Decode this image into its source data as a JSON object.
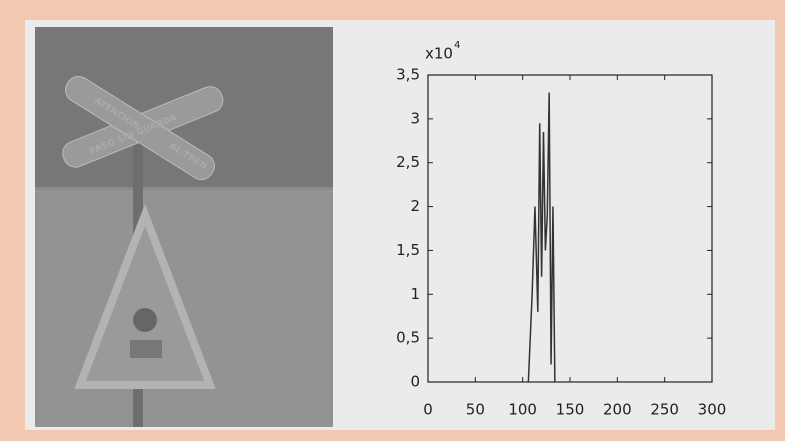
{
  "photo_text": {
    "sign_top": "ATENCION",
    "sign_middle": "PASO SIN GUARDA",
    "sign_bottom": "AL TREN"
  },
  "chart_data": {
    "type": "line",
    "y_multiplier": {
      "base": "x10",
      "exponent": "4"
    },
    "x": [
      106,
      110,
      113,
      116,
      118,
      120,
      122,
      124,
      126,
      128,
      130,
      132,
      134
    ],
    "series": [
      {
        "color": "#333333",
        "values": [
          0,
          1.0,
          2.0,
          0.8,
          2.95,
          1.2,
          2.85,
          1.5,
          1.9,
          3.3,
          0.2,
          2.0,
          0
        ]
      }
    ],
    "xlim": [
      0,
      300
    ],
    "xticks": [
      0,
      50,
      100,
      150,
      200,
      250,
      300
    ],
    "ylim": [
      0,
      3.5
    ],
    "yticks": [
      0,
      {
        "value": 0.5,
        "label": "0,5"
      },
      1,
      {
        "value": 1.5,
        "label": "1,5"
      },
      2,
      {
        "value": 2.5,
        "label": "2,5"
      },
      3,
      {
        "value": 3.5,
        "label": "3,5"
      }
    ]
  }
}
